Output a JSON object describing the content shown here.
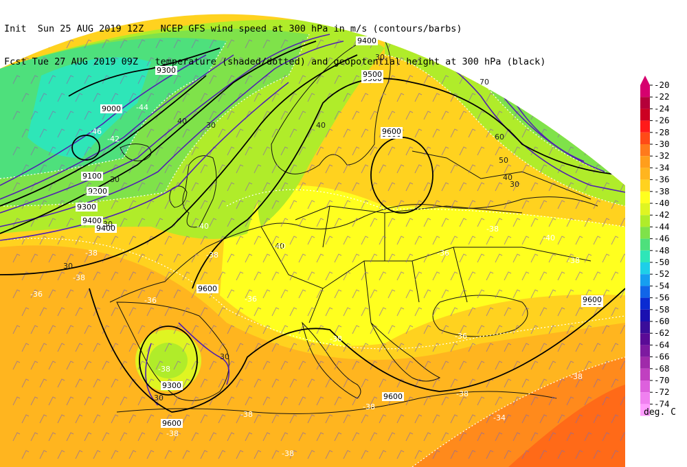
{
  "header": {
    "line1_prefix": "Init  Sun 25 AUG 2019 12Z",
    "line2_prefix": "Fcst Tue 27 AUG 2019 09Z",
    "line1_text": "NCEP GFS wind speed at 300 hPa in m/s (contours/barbs)",
    "line2_text": "temperature (shaded/dotted) and geopotential height at 300 hPa (black)"
  },
  "legend": {
    "unit_label": "deg. C",
    "levels": [
      "-20",
      "-22",
      "-24",
      "-26",
      "-28",
      "-30",
      "-32",
      "-34",
      "-36",
      "-38",
      "-40",
      "-42",
      "-44",
      "-46",
      "-48",
      "-50",
      "-52",
      "-54",
      "-56",
      "-58",
      "-60",
      "-62",
      "-64",
      "-66",
      "-68",
      "-70",
      "-72",
      "-74"
    ],
    "colors": [
      "#d6006e",
      "#b5003a",
      "#cc0022",
      "#ff1a1a",
      "#ff4a17",
      "#ff7a1c",
      "#ff9e1c",
      "#ffb51f",
      "#ffd21f",
      "#ffff1f",
      "#dff522",
      "#b0ec2a",
      "#7fe24a",
      "#4ee07c",
      "#2ee6b8",
      "#1ecfe8",
      "#169ef0",
      "#1165e8",
      "#0a2bd2",
      "#1a10b0",
      "#3a0d9a",
      "#5a0b96",
      "#7d1aa0",
      "#a02aaa",
      "#c040c0",
      "#dd60dd",
      "#f080f0",
      "#ff9cff"
    ]
  },
  "height_labels": [
    "9300",
    "9000",
    "9100",
    "9200",
    "9300",
    "9400",
    "9500",
    "9600",
    "9600",
    "9600",
    "9300",
    "9600",
    "9600",
    "9400",
    "9400",
    "9500",
    "9600",
    "9600"
  ],
  "wind_labels": [
    "30",
    "40",
    "30",
    "30",
    "30",
    "40",
    "40",
    "30",
    "30",
    "50",
    "60",
    "70",
    "40",
    "30",
    "30"
  ],
  "temp_labels": [
    "-36",
    "-38",
    "-38",
    "-36",
    "-38",
    "-38",
    "-38",
    "-36",
    "-38",
    "-40",
    "-40",
    "-38",
    "-38",
    "-36",
    "-38",
    "-38",
    "-38",
    "-34",
    "-38",
    "-36",
    "-38",
    "-40",
    "-42",
    "-44",
    "-46",
    "-38"
  ]
}
